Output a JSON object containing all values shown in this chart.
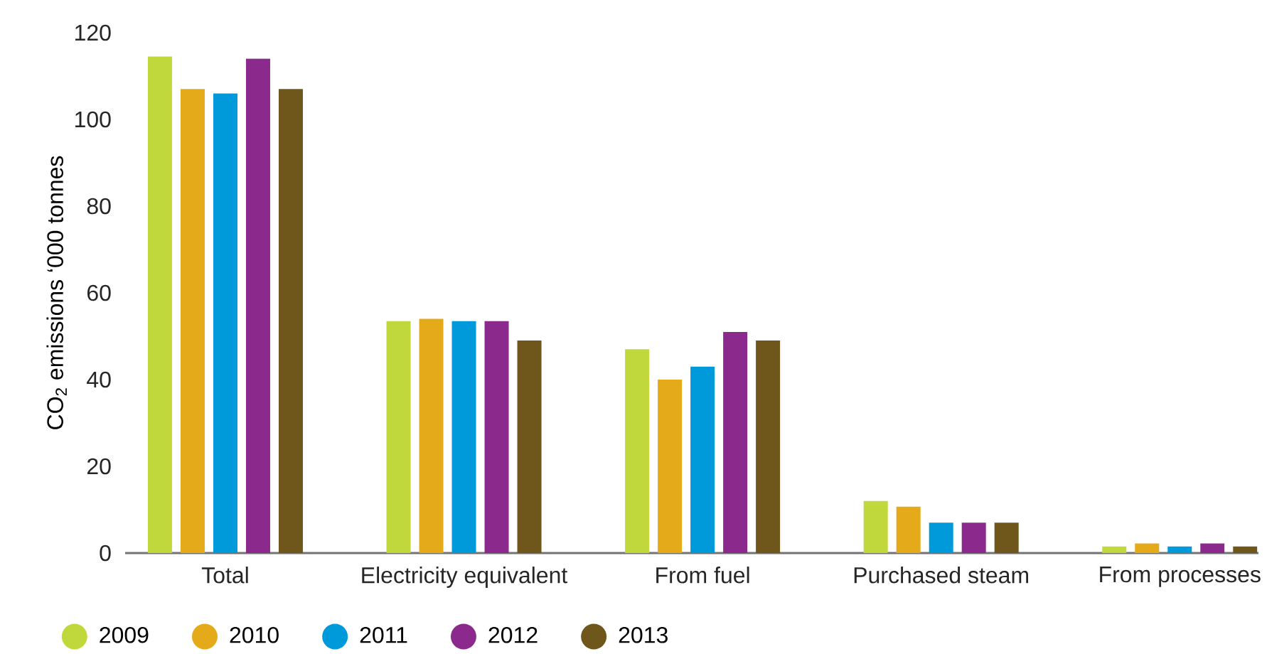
{
  "chart_data": {
    "type": "bar",
    "ylabel": "CO$_{2}$ emissions ‘000 tonnes",
    "categories": [
      "Total",
      "Electricity equivalent",
      "From fuel",
      "Purchased steam",
      "From processes"
    ],
    "series": [
      {
        "name": "2009",
        "color": "#c0d83c",
        "values": [
          114.5,
          53.5,
          47,
          12,
          1.5
        ]
      },
      {
        "name": "2010",
        "color": "#e4aa1a",
        "values": [
          107,
          54,
          40,
          10.7,
          2.2
        ]
      },
      {
        "name": "2011",
        "color": "#0099da",
        "values": [
          106,
          53.5,
          43,
          7,
          1.5
        ]
      },
      {
        "name": "2012",
        "color": "#8b2a8c",
        "values": [
          114,
          53.5,
          51,
          7,
          2.2
        ]
      },
      {
        "name": "2013",
        "color": "#6f561b",
        "values": [
          107,
          49,
          49,
          7,
          1.5
        ]
      }
    ],
    "ylim": [
      0,
      120
    ],
    "yticks": [
      0,
      20,
      40,
      60,
      80,
      100,
      120
    ],
    "legend": "bottom"
  }
}
